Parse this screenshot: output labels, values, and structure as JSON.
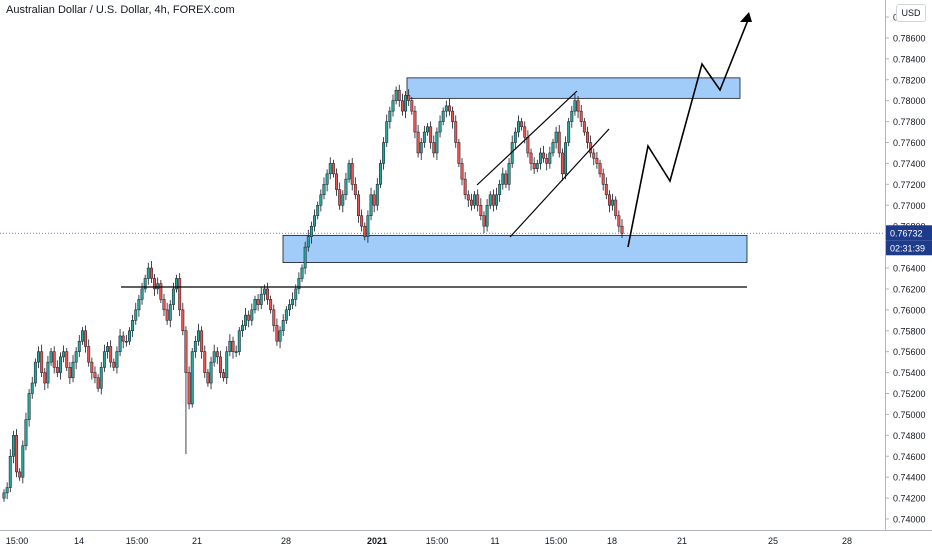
{
  "header": {
    "title": "Australian Dollar / U.S. Dollar, 4h, FOREX.com",
    "currency": "USD"
  },
  "price_scale": {
    "current_price": "0.76732",
    "countdown": "02:31:39"
  },
  "colors": {
    "up": "#26a69a",
    "down": "#ef5350",
    "candle_outline": "#131722",
    "zone_fill": "#90c2f7",
    "zone_stroke": "#131722",
    "axis_text": "#131722",
    "current_price_line": "#2962ff",
    "current_price_label": "#1e3a8a",
    "countdown_label": "#1e3a8a"
  },
  "chart_data": {
    "type": "candlestick",
    "title": "Australian Dollar / U.S. Dollar, 4h, FOREX.com",
    "xlabel": "",
    "ylabel": "USD",
    "ylim": [
      0.7392,
      0.7885
    ],
    "y_ticks": [
      "0.78800",
      "0.78600",
      "0.78400",
      "0.78200",
      "0.78000",
      "0.77800",
      "0.77600",
      "0.77400",
      "0.77200",
      "0.77000",
      "0.76800",
      "0.76600",
      "0.76400",
      "0.76200",
      "0.76000",
      "0.75800",
      "0.75600",
      "0.75400",
      "0.75200",
      "0.75000",
      "0.74800",
      "0.74600",
      "0.74400",
      "0.74200",
      "0.74000"
    ],
    "x_ticks": [
      "15:00",
      "14",
      "15:00",
      "21",
      "28",
      "2021",
      "15:00",
      "11",
      "15:00",
      "18",
      "21",
      "25",
      "28"
    ],
    "grid": false,
    "close": [
      0.7425,
      0.743,
      0.746,
      0.748,
      0.7445,
      0.744,
      0.747,
      0.7495,
      0.752,
      0.753,
      0.755,
      0.756,
      0.754,
      0.753,
      0.755,
      0.756,
      0.7545,
      0.754,
      0.7555,
      0.756,
      0.7545,
      0.7535,
      0.755,
      0.756,
      0.757,
      0.758,
      0.7565,
      0.755,
      0.754,
      0.7535,
      0.7525,
      0.7545,
      0.756,
      0.7565,
      0.755,
      0.7545,
      0.756,
      0.7575,
      0.757,
      0.757,
      0.758,
      0.759,
      0.76,
      0.761,
      0.762,
      0.763,
      0.764,
      0.763,
      0.762,
      0.7625,
      0.761,
      0.76,
      0.759,
      0.7605,
      0.762,
      0.763,
      0.76,
      0.758,
      0.754,
      0.751,
      0.756,
      0.757,
      0.758,
      0.756,
      0.754,
      0.753,
      0.755,
      0.756,
      0.7555,
      0.754,
      0.7535,
      0.756,
      0.757,
      0.756,
      0.756,
      0.758,
      0.7585,
      0.7595,
      0.759,
      0.76,
      0.761,
      0.7605,
      0.7615,
      0.762,
      0.761,
      0.76,
      0.7585,
      0.757,
      0.758,
      0.759,
      0.76,
      0.7605,
      0.761,
      0.762,
      0.763,
      0.764,
      0.766,
      0.767,
      0.768,
      0.769,
      0.77,
      0.771,
      0.772,
      0.773,
      0.774,
      0.773,
      0.7715,
      0.77,
      0.771,
      0.7725,
      0.774,
      0.772,
      0.771,
      0.769,
      0.768,
      0.767,
      0.769,
      0.771,
      0.77,
      0.772,
      0.774,
      0.776,
      0.778,
      0.779,
      0.78,
      0.781,
      0.78,
      0.779,
      0.7805,
      0.78,
      0.779,
      0.777,
      0.775,
      0.776,
      0.777,
      0.7775,
      0.776,
      0.775,
      0.777,
      0.778,
      0.779,
      0.7795,
      0.779,
      0.778,
      0.776,
      0.774,
      0.7725,
      0.771,
      0.7705,
      0.77,
      0.771,
      0.77,
      0.769,
      0.768,
      0.77,
      0.771,
      0.77,
      0.771,
      0.772,
      0.773,
      0.772,
      0.774,
      0.776,
      0.777,
      0.778,
      0.7775,
      0.7765,
      0.775,
      0.774,
      0.7735,
      0.774,
      0.775,
      0.7745,
      0.774,
      0.775,
      0.776,
      0.777,
      0.775,
      0.773,
      0.776,
      0.778,
      0.779,
      0.78,
      0.779,
      0.778,
      0.777,
      0.776,
      0.775,
      0.7745,
      0.774,
      0.773,
      0.772,
      0.771,
      0.77,
      0.7705,
      0.769,
      0.768,
      0.7673
    ]
  },
  "annotations": {
    "zone_upper_label": "",
    "zone_lower_label": ""
  }
}
